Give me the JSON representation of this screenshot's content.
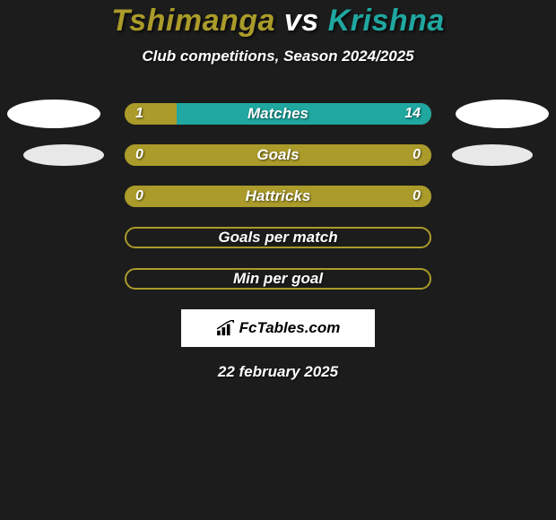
{
  "title": {
    "player1": "Tshimanga",
    "vs": " vs ",
    "player2": "Krishna",
    "player1_color": "#aa9b2a",
    "player2_color": "#1fa7a0"
  },
  "subtitle": "Club competitions, Season 2024/2025",
  "colors": {
    "left_fill": "#aa9b2a",
    "right_fill": "#1fa7a0",
    "bar_bg": "#aa9b2a",
    "outline": "#aa9b2a"
  },
  "rows": [
    {
      "label": "Matches",
      "left_value": "1",
      "right_value": "14",
      "left_pct": 17,
      "right_pct": 83,
      "show_ellipses": "full",
      "left_fill_color": "#aa9b2a",
      "right_fill_color": "#1fa7a0"
    },
    {
      "label": "Goals",
      "left_value": "0",
      "right_value": "0",
      "left_pct": 100,
      "right_pct": 0,
      "show_ellipses": "dim",
      "left_fill_color": "#aa9b2a",
      "right_fill_color": "#1fa7a0"
    },
    {
      "label": "Hattricks",
      "left_value": "0",
      "right_value": "0",
      "left_pct": 100,
      "right_pct": 0,
      "show_ellipses": "none",
      "left_fill_color": "#aa9b2a",
      "right_fill_color": "#1fa7a0"
    },
    {
      "label": "Goals per match",
      "left_value": "",
      "right_value": "",
      "left_pct": 0,
      "right_pct": 0,
      "show_ellipses": "none",
      "outline_only": true,
      "outline_color": "#aa9b2a"
    },
    {
      "label": "Min per goal",
      "left_value": "",
      "right_value": "",
      "left_pct": 0,
      "right_pct": 0,
      "show_ellipses": "none",
      "outline_only": true,
      "outline_color": "#aa9b2a"
    }
  ],
  "logo_text": "FcTables.com",
  "date": "22 february 2025"
}
